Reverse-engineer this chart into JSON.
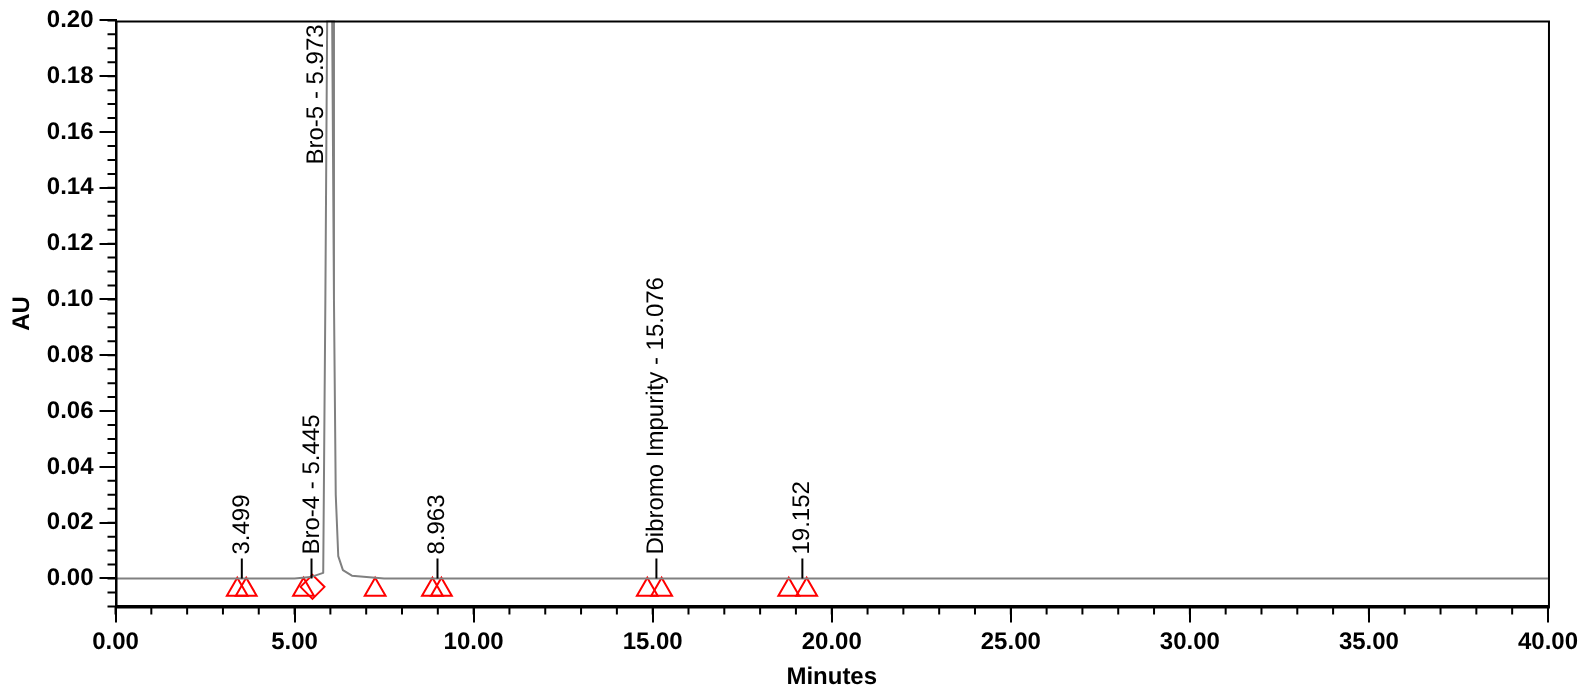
{
  "chart_data": {
    "type": "line",
    "xlabel": "Minutes",
    "ylabel": "AU",
    "xlim": [
      0,
      40
    ],
    "xticks": [
      {
        "value": 0,
        "label": "0.00"
      },
      {
        "value": 5,
        "label": "5.00"
      },
      {
        "value": 10,
        "label": "10.00"
      },
      {
        "value": 15,
        "label": "15.00"
      },
      {
        "value": 20,
        "label": "20.00"
      },
      {
        "value": 25,
        "label": "25.00"
      },
      {
        "value": 30,
        "label": "30.00"
      },
      {
        "value": 35,
        "label": "35.00"
      },
      {
        "value": 40,
        "label": "40.00"
      }
    ],
    "ylim": [
      -0.01,
      0.2
    ],
    "yticks": [
      {
        "value": 0,
        "label": "0.00"
      },
      {
        "value": 0.02,
        "label": "0.02"
      },
      {
        "value": 0.04,
        "label": "0.04"
      },
      {
        "value": 0.06,
        "label": "0.06"
      },
      {
        "value": 0.08,
        "label": "0.08"
      },
      {
        "value": 0.1,
        "label": "0.10"
      },
      {
        "value": 0.12,
        "label": "0.12"
      },
      {
        "value": 0.14,
        "label": "0.14"
      },
      {
        "value": 0.16,
        "label": "0.16"
      },
      {
        "value": 0.18,
        "label": "0.18"
      },
      {
        "value": 0.2,
        "label": "0.20"
      }
    ],
    "grid": false,
    "legend": false,
    "series": [
      {
        "type": "line",
        "color": "#808080",
        "marker": "none",
        "x": [
          0,
          5,
          5.445,
          5.8,
          5.86,
          5.91,
          6.05,
          6.1,
          6.15,
          6.22,
          6.35,
          6.6,
          7.5,
          40
        ],
        "values": [
          0,
          0,
          0.0005,
          0.002,
          0.1,
          0.2,
          0.2,
          0.1,
          0.03,
          0.008,
          0.003,
          0.001,
          0,
          0
        ]
      },
      {
        "type": "scatter",
        "color": "#ff0000",
        "marker": "triangle",
        "x": [
          3.4,
          3.65,
          5.25,
          7.25,
          8.85,
          9.1,
          14.85,
          15.25,
          18.8,
          19.3
        ],
        "values": [
          -0.004,
          -0.004,
          -0.004,
          -0.004,
          -0.004,
          -0.004,
          -0.004,
          -0.004,
          -0.004,
          -0.004
        ]
      },
      {
        "type": "scatter",
        "color": "#ff0000",
        "marker": "diamond",
        "x": [
          5.5
        ],
        "values": [
          -0.003
        ]
      }
    ],
    "annotations": [
      {
        "text": "3.499",
        "x": 3.499,
        "y": 0
      },
      {
        "text": "Bro-4 - 5.445",
        "x": 5.445,
        "y": 0
      },
      {
        "text": "Bro-5 - 5.973",
        "x": 5.973,
        "y": 0.2
      },
      {
        "text": "8.963",
        "x": 8.963,
        "y": 0
      },
      {
        "text": "Dibromo Impurity - 15.076",
        "x": 15.076,
        "y": 0
      },
      {
        "text": "19.152",
        "x": 19.152,
        "y": 0
      }
    ]
  }
}
